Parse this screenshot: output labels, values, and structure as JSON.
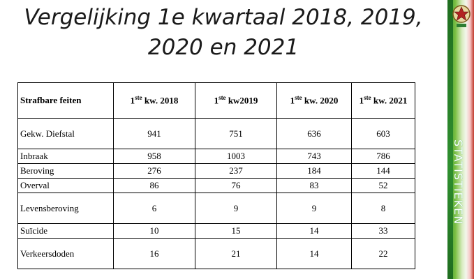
{
  "title": {
    "line1": "Vergelijking 1e kwartaal 2018, 2019,",
    "line2": "2020 en 2021"
  },
  "sidebar_label": "STATISTIEKEN",
  "table": {
    "headers": [
      {
        "label": "Strafbare feiten"
      },
      {
        "prefix": "1",
        "sup": "ste",
        "suffix": " kw. 2018"
      },
      {
        "prefix": "1",
        "sup": "ste",
        "suffix": " kw2019"
      },
      {
        "prefix": "1",
        "sup": "ste",
        "suffix": " kw. 2020"
      },
      {
        "prefix": "1",
        "sup": "ste",
        "suffix": " kw. 2021"
      }
    ],
    "rows": [
      {
        "label": "Gekw. Diefstal",
        "values": [
          "941",
          "751",
          "636",
          "603"
        ]
      },
      {
        "label": "Inbraak",
        "values": [
          "958",
          "1003",
          "743",
          "786"
        ]
      },
      {
        "label": "Beroving",
        "values": [
          "276",
          "237",
          "184",
          "144"
        ]
      },
      {
        "label": "Overval",
        "values": [
          "86",
          "76",
          "83",
          "52"
        ]
      },
      {
        "label": "Levensberoving",
        "values": [
          "6",
          "9",
          "9",
          "8"
        ]
      },
      {
        "label": "Suïcide",
        "values": [
          "10",
          "15",
          "14",
          "33"
        ]
      },
      {
        "label": "Verkeersdoden",
        "values": [
          "16",
          "21",
          "14",
          "22"
        ]
      }
    ]
  },
  "colors": {
    "sidebar_green": "#2e8b2e",
    "sidebar_red": "#c0392b"
  },
  "icons": {
    "emblem": "police-emblem-icon"
  }
}
